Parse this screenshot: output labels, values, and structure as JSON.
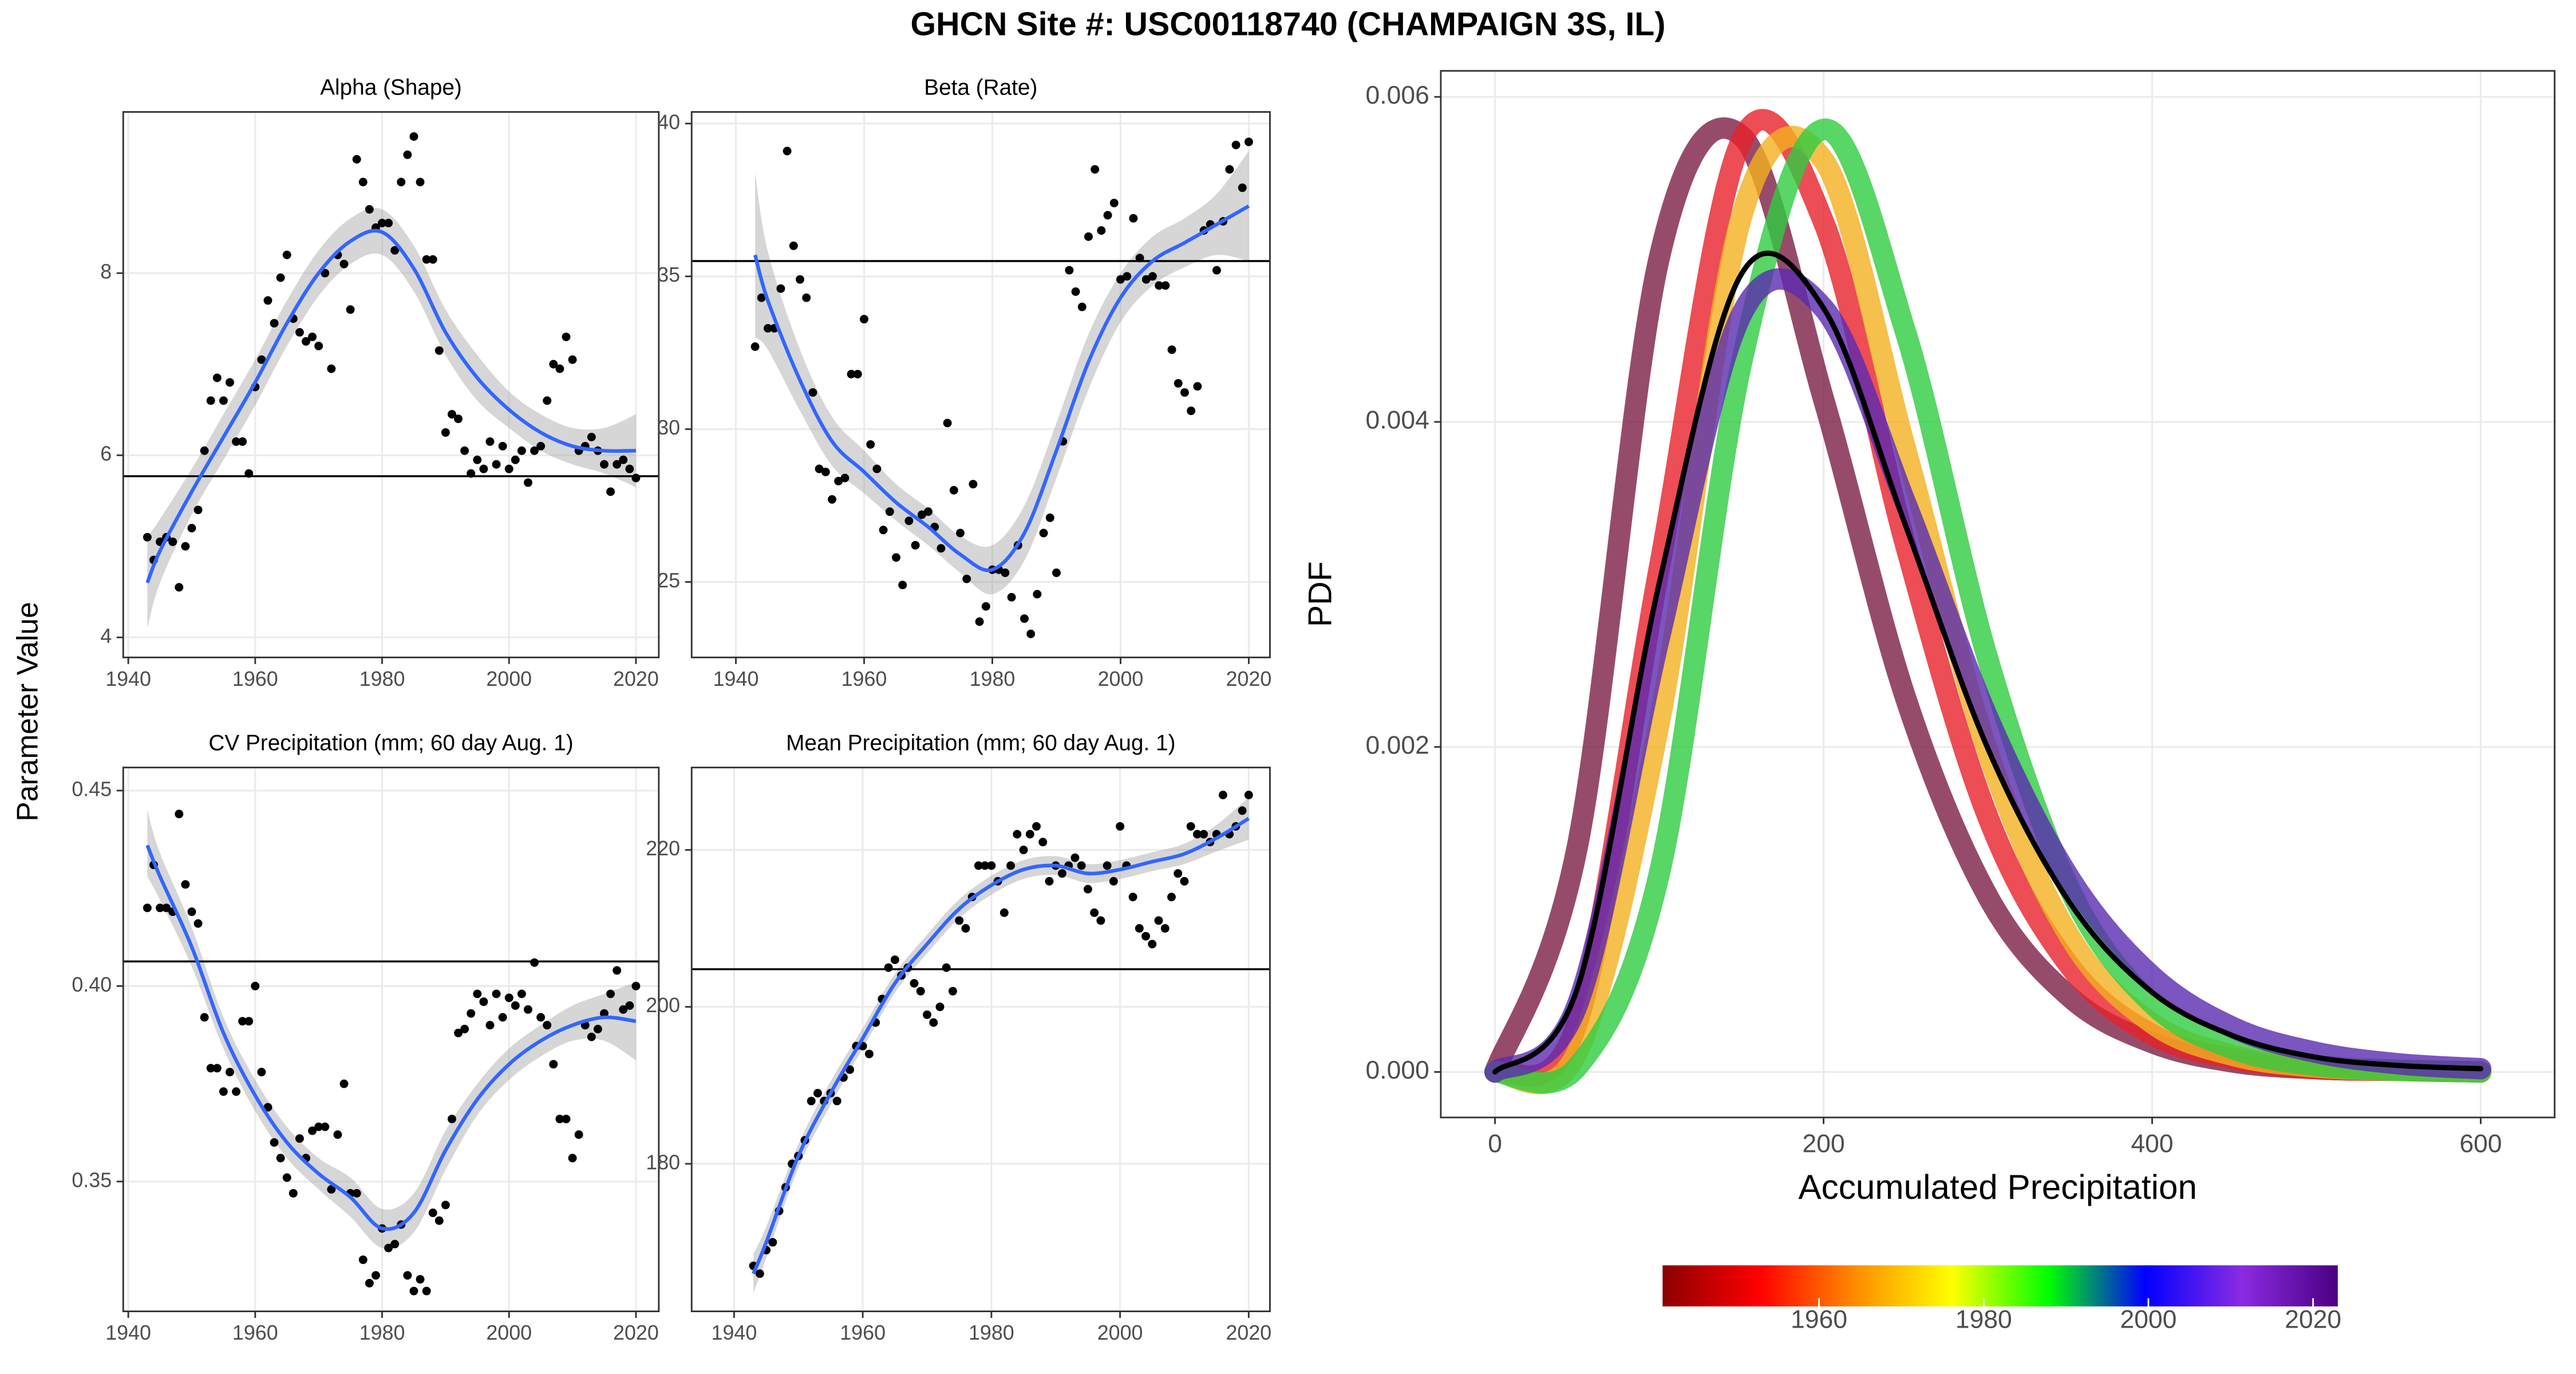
{
  "title": "GHCN Site #: USC00118740 (CHAMPAIGN 3S, IL)",
  "ylabel": "Parameter Value",
  "chart_data": [
    {
      "type": "scatter",
      "title": "Alpha (Shape)",
      "x": [
        1943,
        1944,
        1945,
        1946,
        1947,
        1948,
        1949,
        1950,
        1951,
        1952,
        1953,
        1954,
        1955,
        1956,
        1957,
        1958,
        1959,
        1960,
        1961,
        1962,
        1963,
        1964,
        1965,
        1966,
        1967,
        1968,
        1969,
        1970,
        1971,
        1972,
        1973,
        1974,
        1975,
        1976,
        1977,
        1978,
        1979,
        1980,
        1981,
        1982,
        1983,
        1984,
        1985,
        1986,
        1987,
        1988,
        1989,
        1990,
        1991,
        1992,
        1993,
        1994,
        1995,
        1996,
        1997,
        1998,
        1999,
        2000,
        2001,
        2002,
        2003,
        2004,
        2005,
        2006,
        2007,
        2008,
        2009,
        2010,
        2011,
        2012,
        2013,
        2014,
        2015,
        2016,
        2017,
        2018,
        2019,
        2020
      ],
      "values": [
        5.1,
        4.85,
        5.05,
        5.1,
        5.05,
        4.55,
        5.0,
        5.2,
        5.4,
        6.05,
        6.6,
        6.85,
        6.6,
        6.8,
        6.15,
        6.15,
        5.8,
        6.75,
        7.05,
        7.7,
        7.45,
        7.95,
        8.2,
        7.5,
        7.35,
        7.25,
        7.3,
        7.2,
        8.0,
        6.95,
        8.2,
        8.1,
        7.6,
        9.25,
        9.0,
        8.7,
        8.5,
        8.55,
        8.55,
        8.25,
        9.0,
        9.3,
        9.5,
        9.0,
        8.15,
        8.15,
        7.15,
        6.25,
        6.45,
        6.4,
        6.05,
        5.8,
        5.95,
        5.85,
        6.15,
        5.9,
        6.1,
        5.85,
        5.95,
        6.05,
        5.7,
        6.05,
        6.1,
        6.6,
        7.0,
        6.95,
        7.3,
        7.05,
        6.05,
        6.1,
        6.2,
        6.05,
        5.9,
        5.6,
        5.9,
        5.95,
        5.85,
        5.75
      ],
      "color": "#000000",
      "hline": 5.77,
      "smooth": {
        "color": "#3366ff",
        "x": [
          1943,
          1945,
          1950,
          1955,
          1960,
          1965,
          1970,
          1975,
          1980,
          1985,
          1990,
          1995,
          2000,
          2005,
          2010,
          2015,
          2020
        ],
        "values": [
          4.6,
          4.95,
          5.6,
          6.2,
          6.8,
          7.45,
          8.0,
          8.35,
          8.45,
          8.05,
          7.35,
          6.85,
          6.5,
          6.25,
          6.1,
          6.05,
          6.05
        ],
        "lower": [
          4.1,
          4.6,
          5.35,
          5.95,
          6.55,
          7.2,
          7.75,
          8.1,
          8.2,
          7.8,
          7.1,
          6.6,
          6.3,
          6.05,
          5.9,
          5.8,
          5.65
        ],
        "upper": [
          5.1,
          5.3,
          5.85,
          6.45,
          7.05,
          7.7,
          8.25,
          8.6,
          8.7,
          8.3,
          7.6,
          7.1,
          6.7,
          6.45,
          6.3,
          6.3,
          6.45
        ]
      },
      "xlim": [
        1939.2,
        2023.6
      ],
      "ylim": [
        3.78,
        9.77
      ],
      "xticks": [
        1940,
        1960,
        1980,
        2000,
        2020
      ],
      "yticks": [
        4,
        6,
        8
      ],
      "grid": true
    },
    {
      "type": "scatter",
      "title": "Beta (Rate)",
      "x": [
        1943,
        1944,
        1945,
        1946,
        1947,
        1948,
        1949,
        1950,
        1951,
        1952,
        1953,
        1954,
        1955,
        1956,
        1957,
        1958,
        1959,
        1960,
        1961,
        1962,
        1963,
        1964,
        1965,
        1966,
        1967,
        1968,
        1969,
        1970,
        1971,
        1972,
        1973,
        1974,
        1975,
        1976,
        1977,
        1978,
        1979,
        1980,
        1981,
        1982,
        1983,
        1984,
        1985,
        1986,
        1987,
        1988,
        1989,
        1990,
        1991,
        1992,
        1993,
        1994,
        1995,
        1996,
        1997,
        1998,
        1999,
        2000,
        2001,
        2002,
        2003,
        2004,
        2005,
        2006,
        2007,
        2008,
        2009,
        2010,
        2011,
        2012,
        2013,
        2014,
        2015,
        2016,
        2017,
        2018,
        2019,
        2020
      ],
      "values": [
        32.7,
        34.3,
        33.3,
        33.3,
        34.6,
        39.1,
        36.0,
        34.9,
        34.3,
        31.2,
        28.7,
        28.6,
        27.7,
        28.3,
        28.4,
        31.8,
        31.8,
        33.6,
        29.5,
        28.7,
        26.7,
        27.3,
        25.8,
        24.9,
        27.0,
        26.2,
        27.2,
        27.3,
        26.8,
        26.1,
        30.2,
        28.0,
        26.6,
        25.1,
        28.2,
        23.7,
        24.2,
        25.4,
        25.4,
        25.3,
        24.5,
        26.2,
        23.8,
        23.3,
        24.6,
        26.6,
        27.1,
        25.3,
        29.6,
        35.2,
        34.5,
        34.0,
        36.3,
        38.5,
        36.5,
        37.0,
        37.4,
        34.9,
        35.0,
        36.9,
        35.6,
        34.9,
        35.0,
        34.7,
        34.7,
        32.6,
        31.5,
        31.2,
        30.6,
        31.4,
        36.5,
        36.7,
        35.2,
        36.8,
        38.5,
        39.3,
        37.9,
        39.4
      ],
      "color": "#000000",
      "hline": 35.5,
      "smooth": {
        "color": "#3366ff",
        "x": [
          1943,
          1945,
          1950,
          1955,
          1960,
          1965,
          1970,
          1975,
          1980,
          1985,
          1990,
          1995,
          2000,
          2005,
          2010,
          2015,
          2020
        ],
        "values": [
          35.7,
          34.2,
          31.6,
          29.6,
          28.6,
          27.6,
          26.8,
          25.9,
          25.4,
          26.6,
          29.3,
          32.2,
          34.3,
          35.5,
          36.1,
          36.7,
          37.3
        ],
        "lower": [
          33.0,
          32.6,
          30.6,
          28.8,
          27.9,
          27.0,
          26.2,
          25.3,
          24.6,
          25.7,
          28.4,
          31.3,
          33.5,
          34.7,
          35.3,
          35.7,
          35.5
        ],
        "upper": [
          38.4,
          35.8,
          32.6,
          30.4,
          29.3,
          28.2,
          27.4,
          26.5,
          26.2,
          27.5,
          30.2,
          33.1,
          35.1,
          36.3,
          36.9,
          37.7,
          39.1
        ]
      },
      "xlim": [
        1933.1,
        2023.3
      ],
      "ylim": [
        22.53,
        40.38
      ],
      "xticks": [
        1940,
        1960,
        1980,
        2000,
        2020
      ],
      "yticks": [
        25,
        30,
        35,
        40
      ],
      "grid": true
    },
    {
      "type": "scatter",
      "title": "CV Precipitation (mm; 60 day Aug. 1)",
      "x": [
        1943,
        1944,
        1945,
        1946,
        1947,
        1948,
        1949,
        1950,
        1951,
        1952,
        1953,
        1954,
        1955,
        1956,
        1957,
        1958,
        1959,
        1960,
        1961,
        1962,
        1963,
        1964,
        1965,
        1966,
        1967,
        1968,
        1969,
        1970,
        1971,
        1972,
        1973,
        1974,
        1975,
        1976,
        1977,
        1978,
        1979,
        1980,
        1981,
        1982,
        1983,
        1984,
        1985,
        1986,
        1987,
        1988,
        1989,
        1990,
        1991,
        1992,
        1993,
        1994,
        1995,
        1996,
        1997,
        1998,
        1999,
        2000,
        2001,
        2002,
        2003,
        2004,
        2005,
        2006,
        2007,
        2008,
        2009,
        2010,
        2011,
        2012,
        2013,
        2014,
        2015,
        2016,
        2017,
        2018,
        2019,
        2020
      ],
      "values": [
        0.42,
        0.431,
        0.42,
        0.42,
        0.419,
        0.444,
        0.426,
        0.419,
        0.416,
        0.392,
        0.379,
        0.379,
        0.373,
        0.378,
        0.373,
        0.391,
        0.391,
        0.4,
        0.378,
        0.369,
        0.36,
        0.356,
        0.351,
        0.347,
        0.361,
        0.356,
        0.363,
        0.364,
        0.364,
        0.348,
        0.362,
        0.375,
        0.347,
        0.347,
        0.33,
        0.324,
        0.326,
        0.338,
        0.333,
        0.334,
        0.339,
        0.326,
        0.322,
        0.325,
        0.322,
        0.342,
        0.34,
        0.344,
        0.366,
        0.388,
        0.389,
        0.393,
        0.398,
        0.396,
        0.39,
        0.398,
        0.392,
        0.397,
        0.395,
        0.398,
        0.394,
        0.406,
        0.392,
        0.39,
        0.38,
        0.366,
        0.366,
        0.356,
        0.362,
        0.39,
        0.387,
        0.389,
        0.393,
        0.398,
        0.404,
        0.394,
        0.395,
        0.4
      ],
      "color": "#000000",
      "hline": 0.4063,
      "smooth": {
        "color": "#3366ff",
        "x": [
          1943,
          1945,
          1950,
          1955,
          1960,
          1965,
          1970,
          1975,
          1980,
          1985,
          1990,
          1995,
          2000,
          2005,
          2010,
          2015,
          2020
        ],
        "values": [
          0.436,
          0.428,
          0.41,
          0.388,
          0.372,
          0.36,
          0.352,
          0.346,
          0.338,
          0.342,
          0.358,
          0.371,
          0.38,
          0.386,
          0.39,
          0.392,
          0.391
        ],
        "lower": [
          0.428,
          0.422,
          0.405,
          0.384,
          0.368,
          0.356,
          0.348,
          0.341,
          0.333,
          0.337,
          0.353,
          0.367,
          0.376,
          0.382,
          0.386,
          0.386,
          0.381
        ],
        "upper": [
          0.445,
          0.434,
          0.415,
          0.392,
          0.376,
          0.364,
          0.356,
          0.351,
          0.343,
          0.347,
          0.363,
          0.375,
          0.384,
          0.39,
          0.395,
          0.398,
          0.401
        ]
      },
      "xlim": [
        1939.2,
        2023.6
      ],
      "ylim": [
        0.3168,
        0.4559
      ],
      "xticks": [
        1940,
        1960,
        1980,
        2000,
        2020
      ],
      "yticks": [
        0.35,
        {
          "value": 0.4,
          "label": "0.40"
        },
        0.45
      ],
      "grid": true
    },
    {
      "type": "scatter",
      "title": "Mean Precipitation (mm; 60 day Aug. 1)",
      "x": [
        1943,
        1944,
        1945,
        1946,
        1947,
        1948,
        1949,
        1950,
        1951,
        1952,
        1953,
        1954,
        1955,
        1956,
        1957,
        1958,
        1959,
        1960,
        1961,
        1962,
        1963,
        1964,
        1965,
        1966,
        1967,
        1968,
        1969,
        1970,
        1971,
        1972,
        1973,
        1974,
        1975,
        1976,
        1977,
        1978,
        1979,
        1980,
        1981,
        1982,
        1983,
        1984,
        1985,
        1986,
        1987,
        1988,
        1989,
        1990,
        1991,
        1992,
        1993,
        1994,
        1995,
        1996,
        1997,
        1998,
        1999,
        2000,
        2001,
        2002,
        2003,
        2004,
        2005,
        2006,
        2007,
        2008,
        2009,
        2010,
        2011,
        2012,
        2013,
        2014,
        2015,
        2016,
        2017,
        2018,
        2019,
        2020
      ],
      "values": [
        167,
        166,
        169,
        170,
        174,
        177,
        180,
        181,
        183,
        188,
        189,
        188,
        189,
        188,
        191,
        192,
        195,
        195,
        194,
        198,
        201,
        205,
        206,
        204,
        205,
        203,
        202,
        199,
        198,
        200,
        205,
        202,
        211,
        210,
        214,
        218,
        218,
        218,
        216,
        212,
        218,
        222,
        220,
        222,
        223,
        221,
        216,
        218,
        217,
        218,
        219,
        218,
        215,
        212,
        211,
        218,
        216,
        223,
        218,
        214,
        210,
        209,
        208,
        211,
        210,
        214,
        217,
        216,
        223,
        222,
        222,
        221,
        222,
        227,
        222,
        223,
        225,
        227
      ],
      "color": "#000000",
      "hline": 204.8,
      "smooth": {
        "color": "#3366ff",
        "x": [
          1943,
          1945,
          1950,
          1955,
          1960,
          1965,
          1970,
          1975,
          1980,
          1985,
          1990,
          1995,
          2000,
          2005,
          2010,
          2015,
          2020
        ],
        "values": [
          166,
          170,
          181,
          189,
          196,
          203,
          208,
          212.5,
          215.5,
          217.5,
          218,
          217,
          217.5,
          218.5,
          219.5,
          221.5,
          224
        ],
        "lower": [
          163.5,
          168,
          179.5,
          187.5,
          194.7,
          201.8,
          206.8,
          211.3,
          214.3,
          216.3,
          216.8,
          215.8,
          216.3,
          217.3,
          218.2,
          219.8,
          221.3
        ],
        "upper": [
          168.5,
          172,
          182.5,
          190.5,
          197.3,
          204.2,
          209.2,
          213.7,
          216.7,
          218.7,
          219.2,
          218.2,
          218.7,
          219.7,
          220.8,
          223.2,
          226.7
        ]
      },
      "xlim": [
        1933.4,
        2023.3
      ],
      "ylim": [
        161.2,
        230.5
      ],
      "xticks": [
        1940,
        1960,
        1980,
        2000,
        2020
      ],
      "yticks": [
        180,
        200,
        220
      ],
      "grid": true
    },
    {
      "type": "line",
      "xlabel": "Accumulated Precipitation",
      "ylabel": "PDF",
      "x": [
        0,
        50,
        100,
        150,
        200,
        250,
        300,
        350,
        400,
        450,
        500,
        550,
        600
      ],
      "series": [
        {
          "color": "#7d1e46",
          "values": [
            0,
            0.00138,
            0.00501,
            0.00576,
            0.00414,
            0.0023,
            0.00108,
            0.00046,
            0.00018,
            6e-05,
            2e-05,
            1e-05,
            0
          ]
        },
        {
          "color": "#e8202a",
          "values": [
            0,
            0.0003,
            0.0031,
            0.00573,
            0.00523,
            0.00324,
            0.00157,
            0.00065,
            0.00023,
            8e-05,
            2e-05,
            1e-05,
            0
          ]
        },
        {
          "color": "#f2b01e",
          "values": [
            0,
            0.00012,
            0.00215,
            0.00526,
            0.00561,
            0.00383,
            0.00197,
            0.00083,
            0.0003,
            0.0001,
            3e-05,
            1e-05,
            0
          ]
        },
        {
          "color": "#2ecc40",
          "values": [
            0,
            3e-05,
            0.00122,
            0.00436,
            0.0058,
            0.00455,
            0.00254,
            0.00112,
            0.00042,
            0.00014,
            4e-05,
            1e-05,
            0
          ]
        },
        {
          "color": "#5a2ab0",
          "values": [
            0,
            0.00041,
            0.00267,
            0.00466,
            0.0047,
            0.0035,
            0.00218,
            0.00119,
            0.00059,
            0.00027,
            0.00012,
            5e-05,
            2e-05
          ]
        },
        {
          "color": "#000000",
          "values": [
            0,
            0.00051,
            0.00301,
            0.00491,
            0.0047,
            0.00336,
            0.00199,
            0.00104,
            0.00049,
            0.00022,
            9e-05,
            4e-05,
            2e-05
          ]
        }
      ],
      "xlim": [
        -33,
        645
      ],
      "ylim": [
        -0.00028,
        0.00616
      ],
      "xticks": [
        0,
        200,
        400,
        600
      ],
      "yticks": [
        {
          "value": 0,
          "label": "0.000"
        },
        {
          "value": 0.002,
          "label": "0.002"
        },
        {
          "value": 0.004,
          "label": "0.004"
        },
        {
          "value": 0.006,
          "label": "0.006"
        }
      ],
      "grid": true,
      "colorbar": {
        "lim": [
          1941,
          2023
        ],
        "ticks": [
          1960,
          1980,
          2000,
          2020
        ],
        "colors": [
          "#8b0000",
          "#ff0000",
          "#ff8c00",
          "#ffff00",
          "#00ff00",
          "#0000ff",
          "#8a2be2",
          "#4b0082"
        ]
      }
    }
  ]
}
